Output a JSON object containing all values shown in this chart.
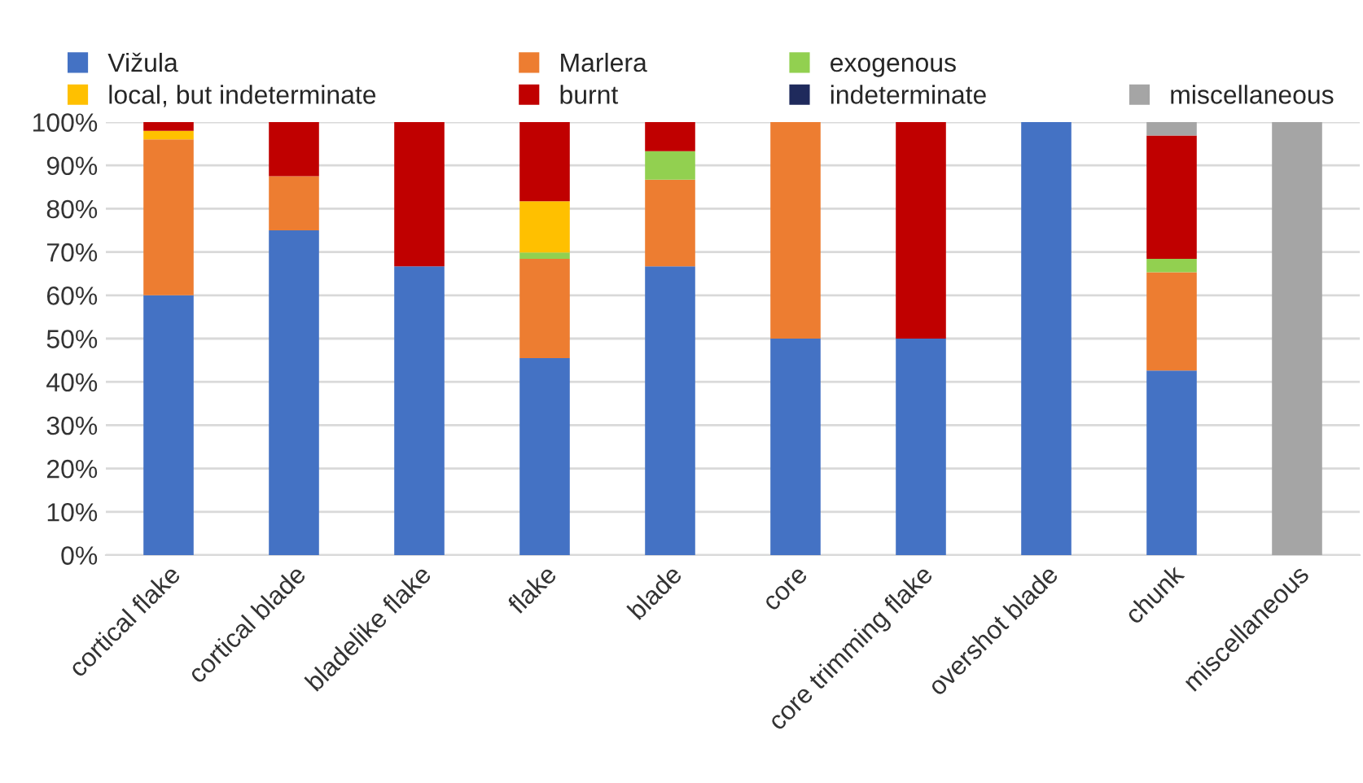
{
  "chart_data": {
    "type": "bar",
    "stacked": true,
    "categories": [
      "cortical flake",
      "cortical blade",
      "bladelike flake",
      "flake",
      "blade",
      "core",
      "core trimming flake",
      "overshot blade",
      "chunk",
      "miscellaneous"
    ],
    "series": [
      {
        "name": "Vižula",
        "color": "#4472c4",
        "values": [
          60,
          75,
          66.7,
          45.5,
          66.7,
          50,
          50,
          100,
          42.6,
          0
        ]
      },
      {
        "name": "Marlera",
        "color": "#ed7d31",
        "values": [
          36,
          12.5,
          0,
          22.9,
          20,
          50,
          0,
          0,
          22.7,
          0
        ]
      },
      {
        "name": "exogenous",
        "color": "#92d050",
        "values": [
          0,
          0,
          0,
          1.5,
          6.6,
          0,
          0,
          0,
          3.1,
          0
        ]
      },
      {
        "name": "local, but indeterminate",
        "color": "#ffc000",
        "values": [
          2,
          0,
          0,
          11.8,
          0,
          0,
          0,
          0,
          0,
          0
        ]
      },
      {
        "name": "burnt",
        "color": "#c00000",
        "values": [
          2,
          12.5,
          33.3,
          18.3,
          6.7,
          0,
          50,
          0,
          28.5,
          0
        ]
      },
      {
        "name": "indeterminate",
        "color": "#1f2a5c",
        "values": [
          0,
          0,
          0,
          0,
          0,
          0,
          0,
          0,
          0,
          0
        ]
      },
      {
        "name": "miscellaneous",
        "color": "#a5a5a5",
        "values": [
          0,
          0,
          0,
          0,
          0,
          0,
          0,
          0,
          3.1,
          100
        ]
      }
    ],
    "ylim": [
      0,
      100
    ],
    "yticks": [
      {
        "value": 0,
        "label": "0%"
      },
      {
        "value": 10,
        "label": "10%"
      },
      {
        "value": 20,
        "label": "20%"
      },
      {
        "value": 30,
        "label": "30%"
      },
      {
        "value": 40,
        "label": "40%"
      },
      {
        "value": 50,
        "label": "50%"
      },
      {
        "value": 60,
        "label": "60%"
      },
      {
        "value": 70,
        "label": "70%"
      },
      {
        "value": 80,
        "label": "80%"
      },
      {
        "value": 90,
        "label": "90%"
      },
      {
        "value": 100,
        "label": "100%"
      }
    ],
    "grid": "y",
    "legend": "top"
  }
}
